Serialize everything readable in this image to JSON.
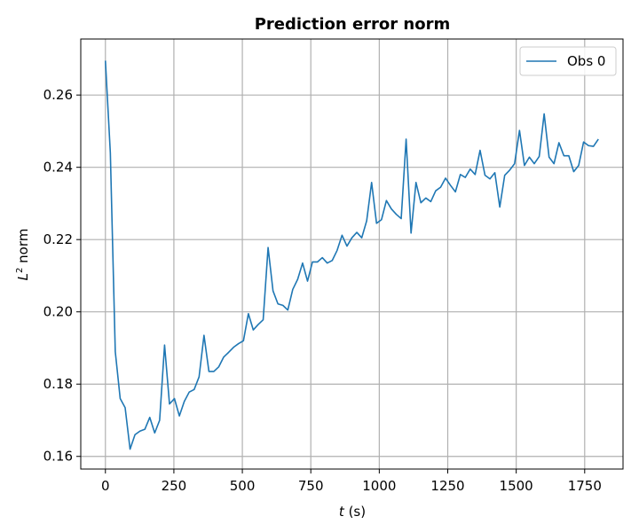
{
  "chart_data": {
    "type": "line",
    "title": "Prediction error norm",
    "xlabel_var": "t",
    "xlabel_unit": "(s)",
    "ylabel_base": "L",
    "ylabel_sup": "2",
    "ylabel_rest": " norm",
    "xlim": [
      -90,
      1890
    ],
    "ylim": [
      0.1565,
      0.2755
    ],
    "xticks": [
      0,
      250,
      500,
      750,
      1000,
      1250,
      1500,
      1750
    ],
    "xtick_labels": [
      "0",
      "250",
      "500",
      "750",
      "1000",
      "1250",
      "1500",
      "1750"
    ],
    "yticks": [
      0.16,
      0.18,
      0.2,
      0.22,
      0.24,
      0.26
    ],
    "ytick_labels": [
      "0.16",
      "0.18",
      "0.20",
      "0.22",
      "0.24",
      "0.26"
    ],
    "grid": true,
    "legend_position": "top-right",
    "series": [
      {
        "name": "Obs 0",
        "color": "#1f77b4",
        "x": [
          0,
          18,
          36,
          54,
          72,
          90,
          108,
          126,
          144,
          162,
          180,
          198,
          216,
          234,
          252,
          270,
          288,
          306,
          324,
          342,
          360,
          378,
          396,
          414,
          432,
          450,
          468,
          486,
          504,
          522,
          540,
          558,
          576,
          594,
          612,
          630,
          648,
          666,
          684,
          702,
          720,
          738,
          756,
          774,
          792,
          810,
          828,
          846,
          864,
          882,
          900,
          918,
          936,
          954,
          972,
          990,
          1008,
          1026,
          1044,
          1062,
          1080,
          1098,
          1116,
          1134,
          1152,
          1170,
          1188,
          1206,
          1224,
          1242,
          1260,
          1278,
          1296,
          1314,
          1332,
          1350,
          1368,
          1386,
          1404,
          1422,
          1440,
          1458,
          1476,
          1494,
          1512,
          1530,
          1548,
          1566,
          1584,
          1602,
          1620,
          1638,
          1656,
          1674,
          1692,
          1710,
          1728,
          1746,
          1764,
          1782,
          1800
        ],
        "y": [
          0.2695,
          0.244,
          0.189,
          0.176,
          0.1735,
          0.162,
          0.166,
          0.167,
          0.1675,
          0.1708,
          0.1665,
          0.17,
          0.1908,
          0.1745,
          0.176,
          0.1712,
          0.1752,
          0.1778,
          0.1785,
          0.182,
          0.1935,
          0.1835,
          0.1835,
          0.1848,
          0.1875,
          0.1888,
          0.1902,
          0.1912,
          0.192,
          0.1995,
          0.195,
          0.1965,
          0.1978,
          0.2178,
          0.2058,
          0.2022,
          0.2018,
          0.2005,
          0.2062,
          0.209,
          0.2135,
          0.2085,
          0.2138,
          0.2138,
          0.215,
          0.2135,
          0.2142,
          0.217,
          0.2212,
          0.2182,
          0.2205,
          0.222,
          0.2205,
          0.2252,
          0.2358,
          0.2245,
          0.2255,
          0.2308,
          0.2285,
          0.227,
          0.2258,
          0.2478,
          0.2218,
          0.2358,
          0.2302,
          0.2315,
          0.2305,
          0.2335,
          0.2345,
          0.237,
          0.235,
          0.2332,
          0.238,
          0.2372,
          0.2395,
          0.238,
          0.2447,
          0.2378,
          0.2368,
          0.2385,
          0.229,
          0.2378,
          0.2392,
          0.241,
          0.2502,
          0.2405,
          0.2428,
          0.241,
          0.243,
          0.2548,
          0.2428,
          0.241,
          0.2468,
          0.2432,
          0.2432,
          0.2388,
          0.2405,
          0.247,
          0.246,
          0.2458,
          0.2478
        ]
      }
    ]
  }
}
